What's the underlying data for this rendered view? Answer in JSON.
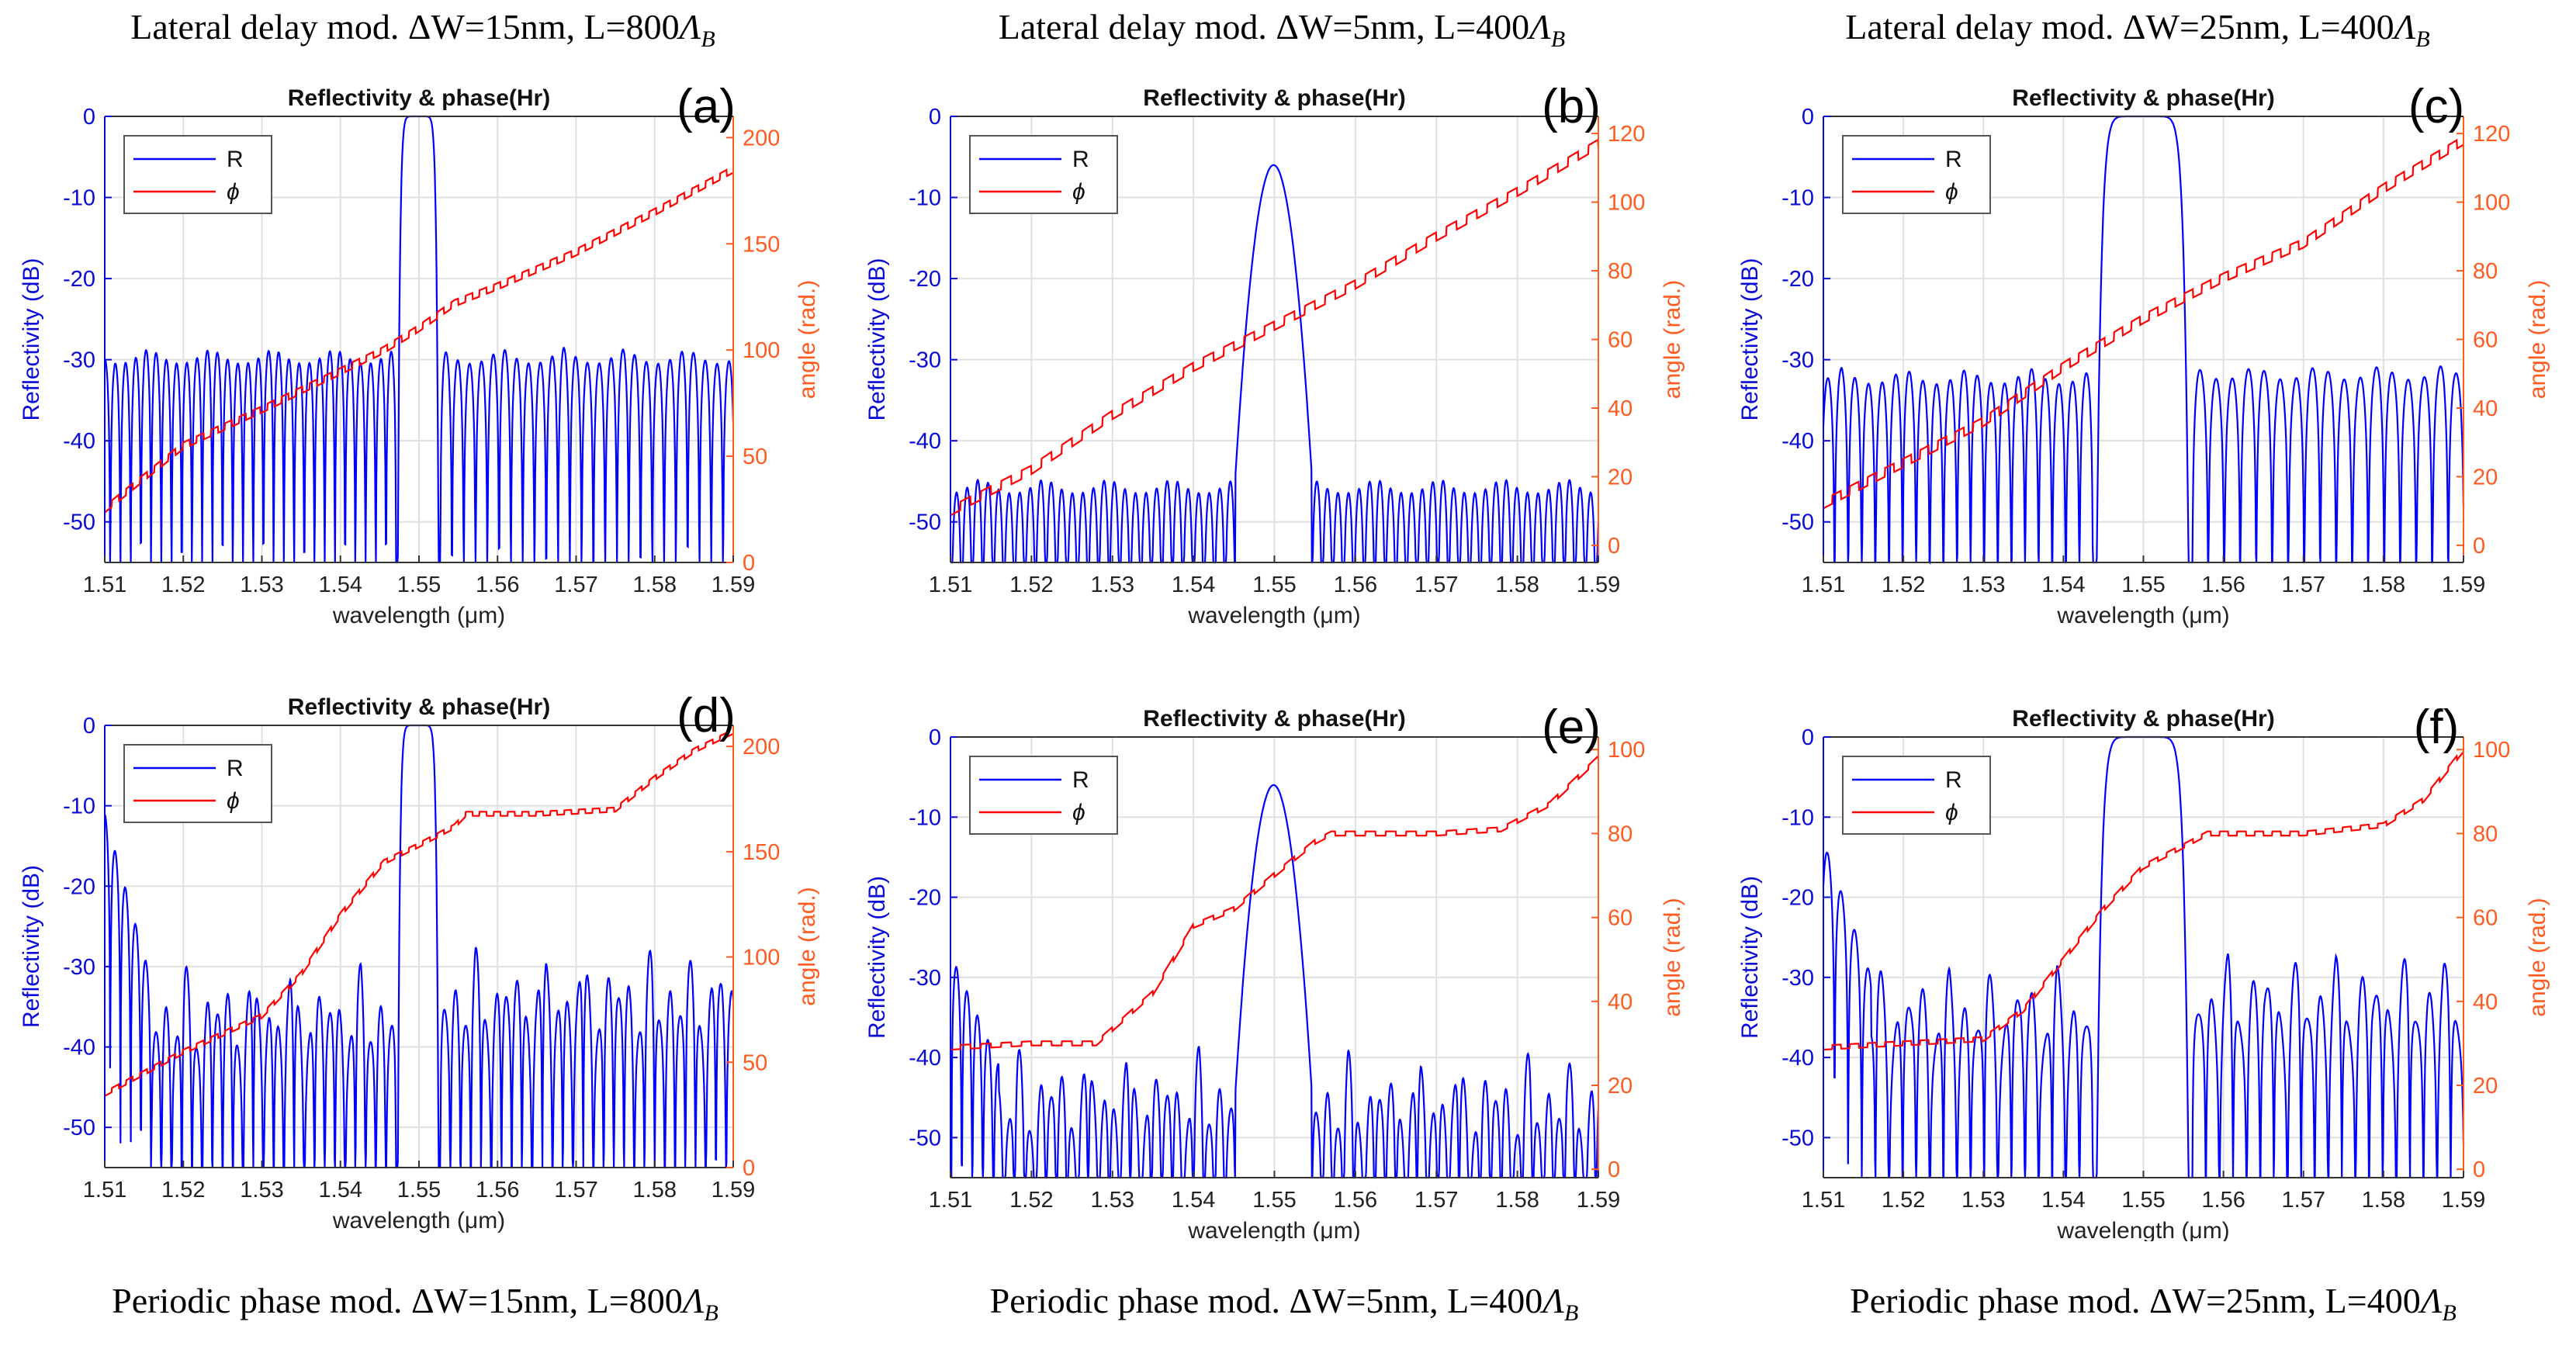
{
  "captions": {
    "top_a": {
      "prefix": "Lateral delay mod. ΔW=15nm, L=800",
      "symbol": "Λ",
      "sub": "B"
    },
    "top_b": {
      "prefix": "Lateral delay mod. ΔW=5nm, L=400",
      "symbol": "Λ",
      "sub": "B"
    },
    "top_c": {
      "prefix": "Lateral delay mod. ΔW=25nm, L=400",
      "symbol": "Λ",
      "sub": "B"
    },
    "bottom_d": {
      "prefix": "Periodic phase mod. ΔW=15nm, L=800",
      "symbol": "Λ",
      "sub": "B"
    },
    "bottom_e": {
      "prefix": "Periodic phase mod. ΔW=5nm, L=400",
      "symbol": "Λ",
      "sub": "B"
    },
    "bottom_f": {
      "prefix": "Periodic phase mod. ΔW=25nm, L=400",
      "symbol": "Λ",
      "sub": "B"
    }
  },
  "colors": {
    "reflectivity": "#0000ff",
    "phase": "#ff0000",
    "right_axis": "#ff5a1f",
    "left_axis": "#0a0ad8",
    "grid": "#e0e0e0"
  },
  "chart_data": [
    {
      "id": "a",
      "panel_label": "(a)",
      "type": "line",
      "title": "Reflectivity & phase(Hr)",
      "xlabel": "wavelength (μm)",
      "ylabel_left": "Reflectivity (dB)",
      "ylabel_right": "angle (rad.)",
      "xlim": [
        1.51,
        1.59
      ],
      "ylim_left": [
        -55,
        0
      ],
      "ylim_right": [
        0,
        210
      ],
      "xticks": [
        1.51,
        1.52,
        1.53,
        1.54,
        1.55,
        1.56,
        1.57,
        1.58,
        1.59
      ],
      "yticks_left": [
        0,
        -10,
        -20,
        -30,
        -40,
        -50
      ],
      "yticks_right": [
        0,
        50,
        100,
        150,
        200
      ],
      "grid": true,
      "legend": {
        "placement": "top-left",
        "entries": [
          "R",
          "ϕ"
        ]
      },
      "series": [
        {
          "name": "R",
          "axis": "left",
          "model": {
            "center": 1.5499,
            "halfwidth": 0.0028,
            "flat_top": true,
            "peak": 0,
            "sidelobe_left": -28.5,
            "sidelobe_right": -28.5,
            "sidelobe_period_left": 0.0013,
            "sidelobe_period_right": 0.0015,
            "floor": -55
          }
        },
        {
          "name": "ϕ",
          "axis": "right",
          "points": [
            [
              1.51,
              25
            ],
            [
              1.52,
              55
            ],
            [
              1.53,
              72
            ],
            [
              1.54,
              90
            ],
            [
              1.5455,
              100
            ],
            [
              1.5499,
              110
            ],
            [
              1.5545,
              122
            ],
            [
              1.56,
              130
            ],
            [
              1.57,
              146
            ],
            [
              1.58,
              165
            ],
            [
              1.59,
              185
            ]
          ],
          "stair_period": 0.0018,
          "stair_amp": 3
        }
      ]
    },
    {
      "id": "b",
      "panel_label": "(b)",
      "type": "line",
      "title": "Reflectivity & phase(Hr)",
      "xlabel": "wavelength (μm)",
      "ylabel_left": "Reflectivity (dB)",
      "ylabel_right": "angle (rad.)",
      "xlim": [
        1.51,
        1.59
      ],
      "ylim_left": [
        -55,
        0
      ],
      "ylim_right": [
        -5,
        125
      ],
      "xticks": [
        1.51,
        1.52,
        1.53,
        1.54,
        1.55,
        1.56,
        1.57,
        1.58,
        1.59
      ],
      "yticks_left": [
        0,
        -10,
        -20,
        -30,
        -40,
        -50
      ],
      "yticks_right": [
        0,
        20,
        40,
        60,
        80,
        100,
        120
      ],
      "grid": true,
      "legend": {
        "placement": "top-left",
        "entries": [
          "R",
          "ϕ"
        ]
      },
      "series": [
        {
          "name": "R",
          "axis": "left",
          "model": {
            "center": 1.5499,
            "halfwidth": 0.0047,
            "flat_top": false,
            "peak": -6,
            "sidelobe_left": -44.5,
            "sidelobe_right": -44.5,
            "sidelobe_period_left": 0.0013,
            "sidelobe_period_right": 0.0013,
            "floor": -55
          }
        },
        {
          "name": "ϕ",
          "axis": "right",
          "points": [
            [
              1.51,
              10
            ],
            [
              1.52,
              22
            ],
            [
              1.53,
              38
            ],
            [
              1.54,
              52
            ],
            [
              1.55,
              64
            ],
            [
              1.56,
              76
            ],
            [
              1.57,
              90
            ],
            [
              1.58,
              103
            ],
            [
              1.59,
              117
            ]
          ],
          "stair_period": 0.0025,
          "stair_amp": 2.5
        }
      ]
    },
    {
      "id": "c",
      "panel_label": "(c)",
      "type": "line",
      "title": "Reflectivity & phase(Hr)",
      "xlabel": "wavelength (μm)",
      "ylabel_left": "Reflectivity (dB)",
      "ylabel_right": "angle (rad.)",
      "xlim": [
        1.51,
        1.59
      ],
      "ylim_left": [
        -55,
        0
      ],
      "ylim_right": [
        -5,
        125
      ],
      "xticks": [
        1.51,
        1.52,
        1.53,
        1.54,
        1.55,
        1.56,
        1.57,
        1.58,
        1.59
      ],
      "yticks_left": [
        0,
        -10,
        -20,
        -30,
        -40,
        -50
      ],
      "yticks_right": [
        0,
        20,
        40,
        60,
        80,
        100,
        120
      ],
      "grid": true,
      "legend": {
        "placement": "top-left",
        "entries": [
          "R",
          "ϕ"
        ]
      },
      "series": [
        {
          "name": "R",
          "axis": "left",
          "model": {
            "center": 1.5499,
            "halfwidth": 0.0062,
            "flat_top": true,
            "peak": 0,
            "sidelobe_left": -31,
            "sidelobe_right": -30.5,
            "sidelobe_period_left": 0.0017,
            "sidelobe_period_right": 0.002,
            "floor": -55
          }
        },
        {
          "name": "ϕ",
          "axis": "right",
          "points": [
            [
              1.51,
              12
            ],
            [
              1.52,
              24
            ],
            [
              1.53,
              36
            ],
            [
              1.54,
              52
            ],
            [
              1.55,
              66
            ],
            [
              1.56,
              78
            ],
            [
              1.57,
              88
            ],
            [
              1.58,
              104
            ],
            [
              1.59,
              118
            ]
          ],
          "stair_period": 0.0022,
          "stair_amp": 2.5
        }
      ]
    },
    {
      "id": "d",
      "panel_label": "(d)",
      "type": "line",
      "title": "Reflectivity & phase(Hr)",
      "xlabel": "wavelength (μm)",
      "ylabel_left": "Reflectivity (dB)",
      "ylabel_right": "angle (rad.)",
      "xlim": [
        1.51,
        1.59
      ],
      "ylim_left": [
        -55,
        0
      ],
      "ylim_right": [
        0,
        210
      ],
      "xticks": [
        1.51,
        1.52,
        1.53,
        1.54,
        1.55,
        1.56,
        1.57,
        1.58,
        1.59
      ],
      "yticks_left": [
        0,
        -10,
        -20,
        -30,
        -40,
        -50
      ],
      "yticks_right": [
        0,
        50,
        100,
        150,
        200
      ],
      "grid": true,
      "legend": {
        "placement": "top-left",
        "entries": [
          "R",
          "ϕ"
        ]
      },
      "series": [
        {
          "name": "R",
          "axis": "left",
          "model": {
            "center": 1.5499,
            "halfwidth": 0.0028,
            "flat_top": true,
            "peak": 0,
            "sidelobe_left": -32,
            "sidelobe_right": -30,
            "sidelobe_period_left": 0.0013,
            "sidelobe_period_right": 0.0013,
            "floor": -52,
            "start_high": -11,
            "noisy": true
          }
        },
        {
          "name": "ϕ",
          "axis": "right",
          "points": [
            [
              1.51,
              35
            ],
            [
              1.52,
              55
            ],
            [
              1.53,
              72
            ],
            [
              1.535,
              92
            ],
            [
              1.54,
              120
            ],
            [
              1.5455,
              145
            ],
            [
              1.5499,
              153
            ],
            [
              1.5545,
              162
            ],
            [
              1.556,
              168
            ],
            [
              1.565,
              168
            ],
            [
              1.575,
              170
            ],
            [
              1.58,
              185
            ],
            [
              1.585,
              198
            ],
            [
              1.59,
              207
            ]
          ],
          "stair_period": 0.0018,
          "stair_amp": 2
        }
      ]
    },
    {
      "id": "e",
      "panel_label": "(e)",
      "type": "line",
      "title": "Reflectivity & phase(Hr)",
      "xlabel": "wavelength (μm)",
      "ylabel_left": "Reflectivity (dB)",
      "ylabel_right": "angle (rad.)",
      "xlim": [
        1.51,
        1.59
      ],
      "ylim_left": [
        -55,
        0
      ],
      "ylim_right": [
        -2,
        103
      ],
      "xticks": [
        1.51,
        1.52,
        1.53,
        1.54,
        1.55,
        1.56,
        1.57,
        1.58,
        1.59
      ],
      "yticks_left": [
        0,
        -10,
        -20,
        -30,
        -40,
        -50
      ],
      "yticks_right": [
        0,
        20,
        40,
        60,
        80,
        100
      ],
      "grid": true,
      "legend": {
        "placement": "top-left",
        "entries": [
          "R",
          "ϕ"
        ]
      },
      "series": [
        {
          "name": "R",
          "axis": "left",
          "model": {
            "center": 1.5499,
            "halfwidth": 0.0047,
            "flat_top": false,
            "peak": -6,
            "sidelobe_left": -41,
            "sidelobe_right": -41.5,
            "sidelobe_period_left": 0.0013,
            "sidelobe_period_right": 0.0013,
            "floor": -55,
            "start_high": -27,
            "noisy": true
          }
        },
        {
          "name": "ϕ",
          "axis": "right",
          "points": [
            [
              1.51,
              29
            ],
            [
              1.52,
              30
            ],
            [
              1.528,
              30
            ],
            [
              1.535,
              42
            ],
            [
              1.54,
              58
            ],
            [
              1.545,
              62
            ],
            [
              1.5499,
              70
            ],
            [
              1.555,
              78
            ],
            [
              1.557,
              80
            ],
            [
              1.57,
              80
            ],
            [
              1.578,
              81
            ],
            [
              1.584,
              87
            ],
            [
              1.59,
              98
            ]
          ],
          "stair_period": 0.0025,
          "stair_amp": 1
        }
      ]
    },
    {
      "id": "f",
      "panel_label": "(f)",
      "type": "line",
      "title": "Reflectivity & phase(Hr)",
      "xlabel": "wavelength (μm)",
      "ylabel_left": "Reflectivity (dB)",
      "ylabel_right": "angle (rad.)",
      "xlim": [
        1.51,
        1.59
      ],
      "ylim_left": [
        -55,
        0
      ],
      "ylim_right": [
        -2,
        103
      ],
      "xticks": [
        1.51,
        1.52,
        1.53,
        1.54,
        1.55,
        1.56,
        1.57,
        1.58,
        1.59
      ],
      "yticks_left": [
        0,
        -10,
        -20,
        -30,
        -40,
        -50
      ],
      "yticks_right": [
        0,
        20,
        40,
        60,
        80,
        100
      ],
      "grid": true,
      "legend": {
        "placement": "top-left",
        "entries": [
          "R",
          "ϕ"
        ]
      },
      "series": [
        {
          "name": "R",
          "axis": "left",
          "model": {
            "center": 1.5499,
            "halfwidth": 0.0062,
            "flat_top": true,
            "peak": 0,
            "sidelobe_left": -30,
            "sidelobe_right": -28.5,
            "sidelobe_period_left": 0.0017,
            "sidelobe_period_right": 0.0017,
            "floor": -52,
            "start_high": -13,
            "noisy": true
          }
        },
        {
          "name": "ϕ",
          "axis": "right",
          "points": [
            [
              1.51,
              29
            ],
            [
              1.52,
              30
            ],
            [
              1.53,
              31
            ],
            [
              1.535,
              38
            ],
            [
              1.54,
              50
            ],
            [
              1.545,
              62
            ],
            [
              1.5499,
              72
            ],
            [
              1.556,
              78
            ],
            [
              1.558,
              80
            ],
            [
              1.57,
              80
            ],
            [
              1.58,
              82
            ],
            [
              1.585,
              88
            ],
            [
              1.59,
              100
            ]
          ],
          "stair_period": 0.0022,
          "stair_amp": 1
        }
      ]
    }
  ]
}
